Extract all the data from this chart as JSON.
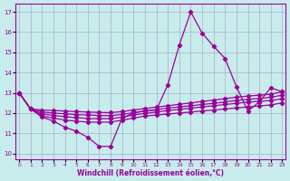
{
  "bg_color": "#c8ecec",
  "line_color": "#990099",
  "grid_color": "#aaaacc",
  "xlabel": "Windchill (Refroidissement éolien,°C)",
  "ylabel_ticks": [
    10,
    11,
    12,
    13,
    14,
    15,
    16,
    17
  ],
  "xlabel_ticks": [
    0,
    1,
    2,
    3,
    4,
    5,
    6,
    7,
    8,
    9,
    10,
    11,
    12,
    13,
    14,
    15,
    16,
    17,
    18,
    19,
    20,
    21,
    22,
    23
  ],
  "xlim": [
    -0.3,
    23.3
  ],
  "ylim": [
    9.7,
    17.4
  ],
  "lines": [
    {
      "x": [
        0,
        1,
        2,
        3,
        4,
        5,
        6,
        7,
        8,
        9,
        10,
        11,
        12,
        13,
        14,
        15,
        16,
        17,
        18,
        19,
        20,
        21,
        22,
        23
      ],
      "y": [
        13.0,
        12.2,
        11.8,
        11.6,
        11.3,
        11.1,
        10.8,
        10.35,
        10.35,
        11.75,
        12.0,
        12.1,
        12.15,
        13.4,
        15.35,
        17.0,
        15.95,
        15.3,
        14.7,
        13.3,
        12.1,
        12.55,
        13.25,
        13.05
      ]
    },
    {
      "x": [
        0,
        1,
        2,
        3,
        4,
        5,
        6,
        7,
        8,
        9,
        10,
        11,
        12,
        13,
        14,
        15,
        16,
        17,
        18,
        19,
        20,
        21,
        22,
        23
      ],
      "y": [
        13.0,
        12.2,
        11.85,
        11.75,
        11.65,
        11.6,
        11.55,
        11.55,
        11.55,
        11.65,
        11.75,
        11.85,
        11.9,
        11.95,
        12.0,
        12.05,
        12.1,
        12.15,
        12.2,
        12.25,
        12.3,
        12.35,
        12.4,
        12.5
      ]
    },
    {
      "x": [
        0,
        1,
        2,
        3,
        4,
        5,
        6,
        7,
        8,
        9,
        10,
        11,
        12,
        13,
        14,
        15,
        16,
        17,
        18,
        19,
        20,
        21,
        22,
        23
      ],
      "y": [
        13.0,
        12.2,
        11.95,
        11.88,
        11.82,
        11.77,
        11.73,
        11.72,
        11.72,
        11.8,
        11.9,
        11.98,
        12.05,
        12.12,
        12.18,
        12.24,
        12.3,
        12.36,
        12.42,
        12.48,
        12.54,
        12.58,
        12.62,
        12.7
      ]
    },
    {
      "x": [
        0,
        1,
        2,
        3,
        4,
        5,
        6,
        7,
        8,
        9,
        10,
        11,
        12,
        13,
        14,
        15,
        16,
        17,
        18,
        19,
        20,
        21,
        22,
        23
      ],
      "y": [
        13.0,
        12.2,
        12.05,
        12.0,
        11.96,
        11.92,
        11.9,
        11.88,
        11.87,
        11.93,
        12.02,
        12.1,
        12.17,
        12.24,
        12.3,
        12.36,
        12.42,
        12.48,
        12.55,
        12.62,
        12.68,
        12.72,
        12.78,
        12.88
      ]
    },
    {
      "x": [
        0,
        1,
        2,
        3,
        4,
        5,
        6,
        7,
        8,
        9,
        10,
        11,
        12,
        13,
        14,
        15,
        16,
        17,
        18,
        19,
        20,
        21,
        22,
        23
      ],
      "y": [
        13.0,
        12.2,
        12.15,
        12.12,
        12.1,
        12.07,
        12.05,
        12.03,
        12.02,
        12.07,
        12.15,
        12.22,
        12.29,
        12.36,
        12.43,
        12.5,
        12.57,
        12.64,
        12.71,
        12.78,
        12.84,
        12.88,
        12.93,
        13.05
      ]
    }
  ],
  "marker": "D",
  "markersize": 2.2,
  "linewidth": 0.9
}
